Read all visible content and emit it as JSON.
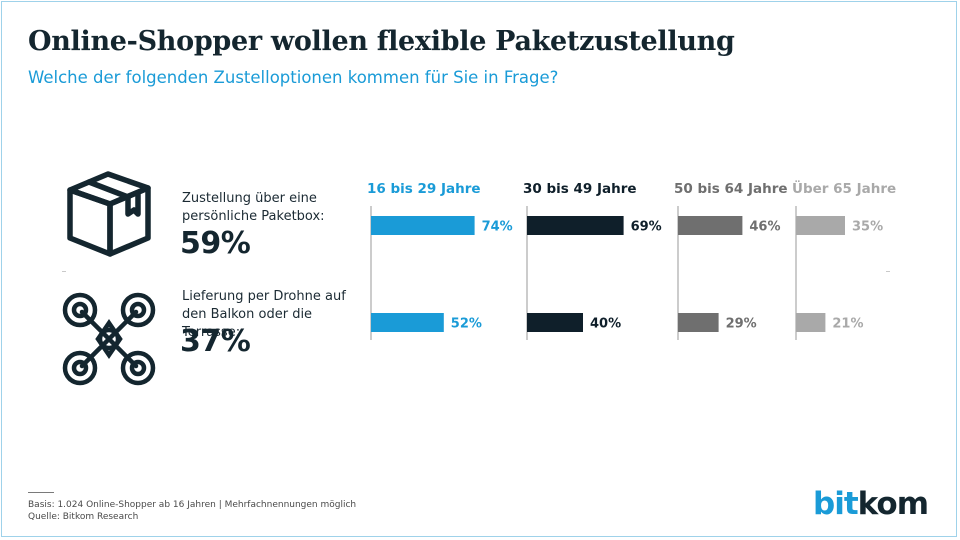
{
  "title": "Online-Shopper wollen flexible Paketzustellung",
  "subtitle": "Welche der folgenden Zustelloptionen kommen für Sie in Frage?",
  "categories": [
    {
      "label_line1": "Zustellung über eine",
      "label_line2": "persönliche Paketbox:",
      "total": "59%",
      "icon": "package-box-icon"
    },
    {
      "label_line1": "Lieferung per Drohne auf",
      "label_line2": "den Balkon oder die Terrasse:",
      "total": "37%",
      "icon": "delivery-drone-icon"
    }
  ],
  "chart_data": {
    "type": "bar",
    "orientation": "horizontal",
    "title": "Welche der folgenden Zustelloptionen kommen für Sie in Frage?",
    "categories": [
      "Zustellung über eine persönliche Paketbox",
      "Lieferung per Drohne auf den Balkon oder die Terrasse"
    ],
    "totals": [
      59,
      37
    ],
    "series": [
      {
        "name": "16 bis 29 Jahre",
        "values": [
          74,
          52
        ],
        "color": "#1a9bd7",
        "label_color": "#1a9bd7"
      },
      {
        "name": "30 bis 49 Jahre",
        "values": [
          69,
          40
        ],
        "color": "#0f1f2a",
        "label_color": "#0f1f2a"
      },
      {
        "name": "50 bis 64 Jahre",
        "values": [
          46,
          29
        ],
        "color": "#6f6f6f",
        "label_color": "#6f6f6f"
      },
      {
        "name": "Über 65 Jahre",
        "values": [
          35,
          21
        ],
        "color": "#a9a9a9",
        "label_color": "#a9a9a9"
      }
    ],
    "value_suffix": "%",
    "xlim": [
      0,
      100
    ]
  },
  "footer": {
    "basis": "Basis: 1.024 Online-Shopper ab 16 Jahren | Mehrfachnennungen möglich",
    "source": "Quelle: Bitkom Research"
  },
  "logo": {
    "part1": "bit",
    "part2": "kom"
  }
}
